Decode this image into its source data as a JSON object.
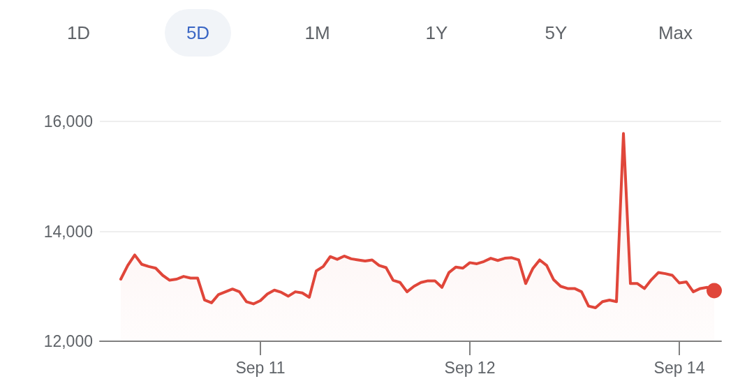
{
  "chart_data": {
    "type": "area",
    "annotations": [
      "1D",
      "5D",
      "1M",
      "1Y",
      "5Y",
      "Max"
    ],
    "categories": [
      null,
      null,
      null,
      null,
      null,
      null,
      null,
      null,
      null,
      null,
      null,
      null,
      null,
      null,
      null,
      null,
      null,
      null,
      null,
      null,
      null,
      null,
      null,
      "Sep 11",
      null,
      null,
      null,
      null,
      null,
      null,
      null,
      null,
      null,
      null,
      null,
      null,
      null,
      null,
      null,
      null,
      null,
      null,
      null,
      null,
      null,
      null,
      null,
      null,
      null,
      null,
      null,
      null,
      null,
      "Sep 12",
      null,
      null,
      null,
      null,
      null,
      null,
      null,
      null,
      null,
      null,
      null,
      null,
      null,
      null,
      null,
      null,
      null,
      null,
      null,
      null,
      null,
      null,
      null,
      null,
      null,
      null,
      null,
      null,
      null,
      "Sep 14",
      null,
      null,
      null,
      null,
      null,
      null
    ],
    "values": [
      null,
      null,
      null,
      13130,
      13380,
      13570,
      13400,
      13360,
      13330,
      13200,
      13110,
      13130,
      13180,
      13150,
      13150,
      12750,
      12700,
      12850,
      12900,
      12950,
      12900,
      12720,
      12680,
      12740,
      12860,
      12930,
      12890,
      12820,
      12900,
      12880,
      12800,
      13280,
      13360,
      13540,
      13490,
      13550,
      13500,
      13480,
      13460,
      13480,
      13380,
      13340,
      13110,
      13070,
      12900,
      13000,
      13070,
      13100,
      13100,
      12980,
      13250,
      13350,
      13330,
      13430,
      13410,
      13450,
      13510,
      13470,
      13510,
      13520,
      13480,
      13050,
      13320,
      13480,
      13380,
      13120,
      13000,
      12960,
      12960,
      12900,
      12640,
      12610,
      12720,
      12750,
      12720,
      15780,
      13050,
      13050,
      12960,
      13120,
      13250,
      13230,
      13200,
      13060,
      13080,
      12900,
      12960,
      12980,
      12920,
      null
    ],
    "color": "#e0463a",
    "ylim": [
      12000,
      16000
    ],
    "yticks": [
      {
        "value": 12000,
        "label": "12,000"
      },
      {
        "value": 14000,
        "label": "14,000"
      },
      {
        "value": 16000,
        "label": "16,000"
      }
    ],
    "grid": "y"
  }
}
